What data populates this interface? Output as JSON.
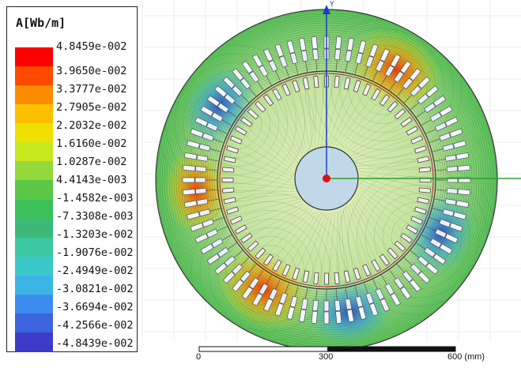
{
  "legend": {
    "title": "A[Wb/m]",
    "labels": [
      "4.8459e-002",
      "3.9650e-002",
      "3.3777e-002",
      "2.7905e-002",
      "2.2032e-002",
      "1.6160e-002",
      "1.0287e-002",
      "4.4143e-003",
      "-1.4582e-003",
      "-7.3308e-003",
      "-1.3203e-002",
      "-1.9076e-002",
      "-2.4949e-002",
      "-3.0821e-002",
      "-3.6694e-002",
      "-4.2566e-002",
      "-4.8439e-002"
    ],
    "colors": [
      "#ff0000",
      "#ff4a00",
      "#ff8c00",
      "#ffc000",
      "#f0e000",
      "#c8e81e",
      "#96d83c",
      "#5ac846",
      "#3cc05a",
      "#3cb878",
      "#3cc8a0",
      "#3cc8c8",
      "#3cb4e6",
      "#3c8cf0",
      "#3c64dc",
      "#3c3cc8"
    ]
  },
  "axis": {
    "y_label": "Y"
  },
  "scale": {
    "label_0": "0",
    "label_300": "300",
    "label_600": "600 (mm)"
  }
}
